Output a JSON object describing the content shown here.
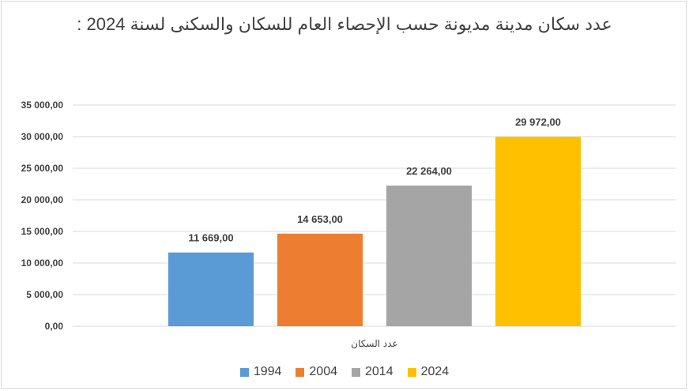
{
  "chart_data": {
    "type": "bar",
    "title": "عدد سكان مدينة مديونة حسب الإحصاء العام للسكان والسكنى لسنة 2024 :",
    "categories": [
      "عدد السكان"
    ],
    "series": [
      {
        "name": "1994",
        "values": [
          11669
        ],
        "label": "11 669,00",
        "color": "#5b9bd5"
      },
      {
        "name": "2004",
        "values": [
          14653
        ],
        "label": "14 653,00",
        "color": "#ed7d31"
      },
      {
        "name": "2014",
        "values": [
          22264
        ],
        "label": "22 264,00",
        "color": "#a5a5a5"
      },
      {
        "name": "2024",
        "values": [
          29972
        ],
        "label": "29 972,00",
        "color": "#ffc000"
      }
    ],
    "ylim": [
      0,
      35000
    ],
    "yticks": [
      {
        "value": 0,
        "label": "0,00"
      },
      {
        "value": 5000,
        "label": "5 000,00"
      },
      {
        "value": 10000,
        "label": "10 000,00"
      },
      {
        "value": 15000,
        "label": "15 000,00"
      },
      {
        "value": 20000,
        "label": "20 000,00"
      },
      {
        "value": 25000,
        "label": "25 000,00"
      },
      {
        "value": 30000,
        "label": "30 000,00"
      },
      {
        "value": 35000,
        "label": "35 000,00"
      }
    ],
    "grid": true,
    "legend_position": "bottom"
  }
}
